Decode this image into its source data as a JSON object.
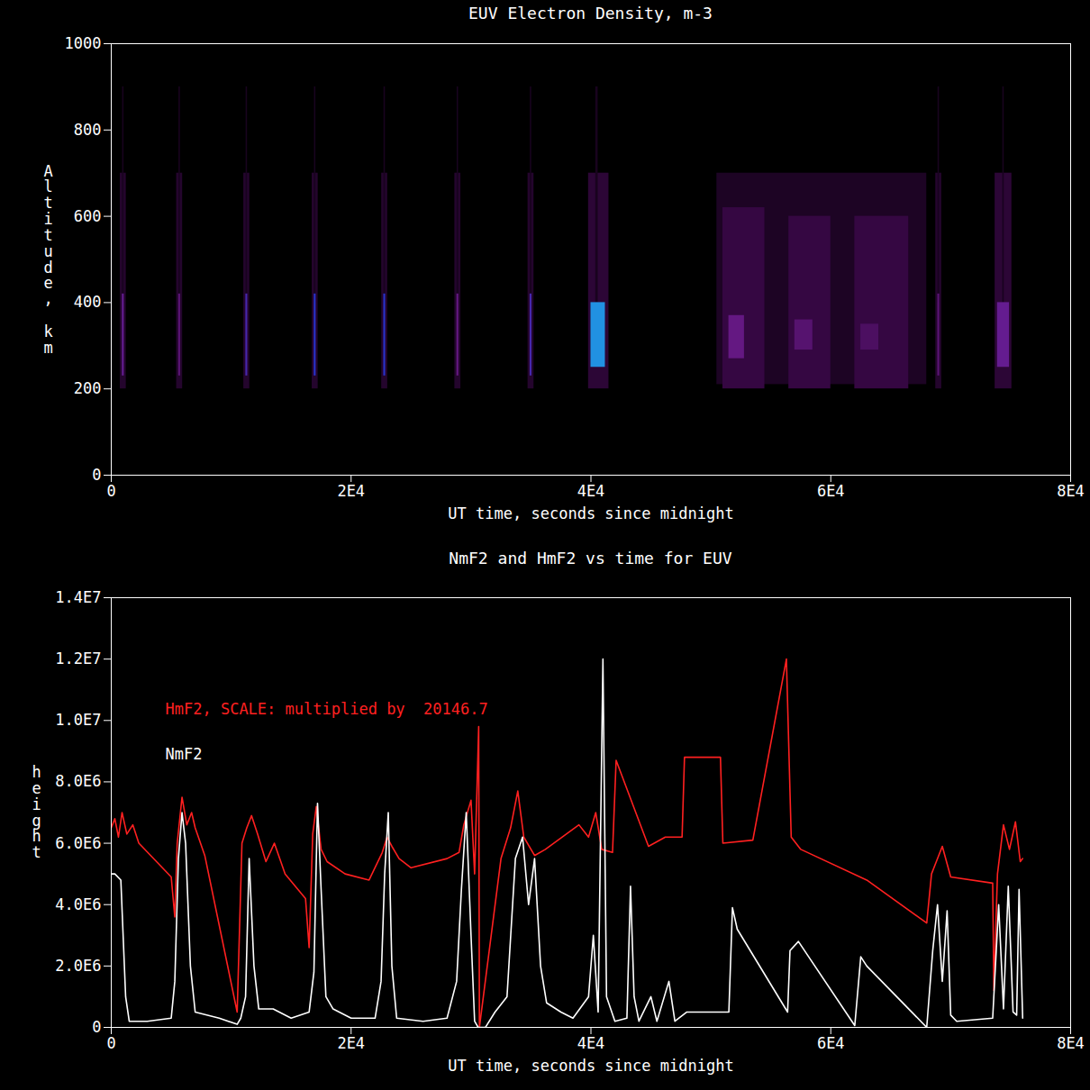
{
  "chart_data": [
    {
      "type": "heatmap",
      "title": "EUV Electron Density, m-3",
      "x_label": "UT time, seconds since midnight",
      "y_label": "Altitude, km",
      "xlim": [
        0,
        80000
      ],
      "xticks": [
        0,
        {
          "value": 20000,
          "label": "2E4"
        },
        {
          "value": 40000,
          "label": "4E4"
        },
        {
          "value": 60000,
          "label": "6E4"
        },
        {
          "value": 80000,
          "label": "8E4"
        }
      ],
      "ylim": [
        0,
        1000
      ],
      "yticks": [
        0,
        200,
        400,
        600,
        800,
        1000
      ],
      "zlim": [
        0,
        12000000
      ],
      "cells": [
        {
          "x0": 50500,
          "x1": 68000,
          "y0": 210,
          "y1": 700,
          "value": 1200000
        },
        {
          "x0": 51000,
          "x1": 54500,
          "y0": 200,
          "y1": 620,
          "value": 2200000
        },
        {
          "x0": 56500,
          "x1": 60000,
          "y0": 200,
          "y1": 600,
          "value": 2200000
        },
        {
          "x0": 62000,
          "x1": 66500,
          "y0": 200,
          "y1": 600,
          "value": 2200000
        },
        {
          "x0": 51500,
          "x1": 52800,
          "y0": 270,
          "y1": 370,
          "value": 4500000
        },
        {
          "x0": 57000,
          "x1": 58500,
          "y0": 290,
          "y1": 360,
          "value": 3800000
        },
        {
          "x0": 62500,
          "x1": 64000,
          "y0": 290,
          "y1": 350,
          "value": 3300000
        },
        {
          "x0": 750,
          "x1": 1250,
          "y0": 200,
          "y1": 700,
          "value": 1500000
        },
        {
          "x0": 940,
          "x1": 1060,
          "y0": 400,
          "y1": 900,
          "value": 1000000
        },
        {
          "x0": 920,
          "x1": 1080,
          "y0": 230,
          "y1": 420,
          "value": 5000000
        },
        {
          "x0": 5450,
          "x1": 5950,
          "y0": 200,
          "y1": 700,
          "value": 1500000
        },
        {
          "x0": 5640,
          "x1": 5760,
          "y0": 400,
          "y1": 900,
          "value": 1000000
        },
        {
          "x0": 5620,
          "x1": 5780,
          "y0": 230,
          "y1": 420,
          "value": 4000000
        },
        {
          "x0": 11050,
          "x1": 11550,
          "y0": 200,
          "y1": 700,
          "value": 1500000
        },
        {
          "x0": 11240,
          "x1": 11360,
          "y0": 400,
          "y1": 900,
          "value": 1000000
        },
        {
          "x0": 11220,
          "x1": 11380,
          "y0": 230,
          "y1": 420,
          "value": 6000000
        },
        {
          "x0": 16750,
          "x1": 17250,
          "y0": 200,
          "y1": 700,
          "value": 1500000
        },
        {
          "x0": 16940,
          "x1": 17060,
          "y0": 400,
          "y1": 900,
          "value": 1000000
        },
        {
          "x0": 16920,
          "x1": 17080,
          "y0": 230,
          "y1": 420,
          "value": 7000000
        },
        {
          "x0": 22550,
          "x1": 23050,
          "y0": 200,
          "y1": 700,
          "value": 1500000
        },
        {
          "x0": 22740,
          "x1": 22860,
          "y0": 400,
          "y1": 900,
          "value": 1000000
        },
        {
          "x0": 22720,
          "x1": 22880,
          "y0": 230,
          "y1": 420,
          "value": 7000000
        },
        {
          "x0": 28650,
          "x1": 29150,
          "y0": 200,
          "y1": 700,
          "value": 1500000
        },
        {
          "x0": 28840,
          "x1": 28960,
          "y0": 400,
          "y1": 900,
          "value": 1000000
        },
        {
          "x0": 28820,
          "x1": 28980,
          "y0": 230,
          "y1": 420,
          "value": 4500000
        },
        {
          "x0": 34750,
          "x1": 35250,
          "y0": 200,
          "y1": 700,
          "value": 1500000
        },
        {
          "x0": 34940,
          "x1": 35060,
          "y0": 400,
          "y1": 900,
          "value": 1000000
        },
        {
          "x0": 34920,
          "x1": 35080,
          "y0": 230,
          "y1": 420,
          "value": 6000000
        },
        {
          "x0": 39800,
          "x1": 41500,
          "y0": 200,
          "y1": 700,
          "value": 1800000
        },
        {
          "x0": 40400,
          "x1": 40600,
          "y0": 400,
          "y1": 900,
          "value": 1000000
        },
        {
          "x0": 40000,
          "x1": 41200,
          "y0": 250,
          "y1": 400,
          "value": 9000000
        },
        {
          "x0": 68750,
          "x1": 69250,
          "y0": 200,
          "y1": 700,
          "value": 1500000
        },
        {
          "x0": 68940,
          "x1": 69060,
          "y0": 400,
          "y1": 900,
          "value": 1000000
        },
        {
          "x0": 68920,
          "x1": 69080,
          "y0": 230,
          "y1": 420,
          "value": 4000000
        },
        {
          "x0": 73700,
          "x1": 75100,
          "y0": 200,
          "y1": 700,
          "value": 1800000
        },
        {
          "x0": 74340,
          "x1": 74460,
          "y0": 400,
          "y1": 900,
          "value": 1000000
        },
        {
          "x0": 73900,
          "x1": 74900,
          "y0": 250,
          "y1": 400,
          "value": 5000000
        }
      ]
    },
    {
      "type": "line",
      "title": "NmF2 and HmF2 vs time for EUV",
      "x_label": "UT time, seconds since midnight",
      "y_label": "height",
      "xlim": [
        0,
        80000
      ],
      "xticks": [
        0,
        {
          "value": 20000,
          "label": "2E4"
        },
        {
          "value": 40000,
          "label": "4E4"
        },
        {
          "value": 60000,
          "label": "6E4"
        },
        {
          "value": 80000,
          "label": "8E4"
        }
      ],
      "ylim": [
        0,
        14000000
      ],
      "yticks": [
        0,
        {
          "value": 2000000,
          "label": "2.0E6"
        },
        {
          "value": 4000000,
          "label": "4.0E6"
        },
        {
          "value": 6000000,
          "label": "6.0E6"
        },
        {
          "value": 8000000,
          "label": "8.0E6"
        },
        {
          "value": 10000000,
          "label": "1.0E7"
        },
        {
          "value": 12000000,
          "label": "1.2E7"
        },
        {
          "value": 14000000,
          "label": "1.4E7"
        }
      ],
      "legend": "upper left",
      "series": [
        {
          "name": "HmF2, SCALE: multiplied by  20146.7",
          "color": "#ff2020",
          "x": [
            0,
            300,
            600,
            900,
            1300,
            1800,
            2300,
            5000,
            5300,
            5500,
            5900,
            6300,
            6700,
            7000,
            7800,
            10500,
            10900,
            11300,
            11700,
            12200,
            12900,
            13600,
            14500,
            16200,
            16500,
            16800,
            17100,
            17500,
            18000,
            19500,
            21500,
            22600,
            23000,
            23400,
            24000,
            25000,
            28000,
            29000,
            29400,
            30000,
            30300,
            30640,
            30700,
            32500,
            33300,
            33900,
            34400,
            35300,
            36200,
            39000,
            39800,
            40400,
            40900,
            41800,
            42100,
            44800,
            46200,
            47600,
            47800,
            50800,
            51000,
            53500,
            56300,
            56700,
            57500,
            63000,
            68000,
            68400,
            68800,
            69300,
            70000,
            73500,
            73600,
            73900,
            74400,
            74900,
            75400,
            75800,
            76000
          ],
          "values": [
            6500000,
            6800000,
            6200000,
            7000000,
            6300000,
            6600000,
            6000000,
            4900000,
            3600000,
            6000000,
            7500000,
            6600000,
            7000000,
            6500000,
            5600000,
            500000,
            6000000,
            6500000,
            6900000,
            6300000,
            5400000,
            6000000,
            5000000,
            4200000,
            2600000,
            6300000,
            7200000,
            5800000,
            5400000,
            5000000,
            4800000,
            5700000,
            6200000,
            5900000,
            5500000,
            5200000,
            5500000,
            5700000,
            6600000,
            7400000,
            5000000,
            9800000,
            0,
            5500000,
            6500000,
            7700000,
            6200000,
            5600000,
            5800000,
            6600000,
            6200000,
            7000000,
            5800000,
            5700000,
            8700000,
            5900000,
            6200000,
            6200000,
            8800000,
            8800000,
            6000000,
            6100000,
            12000000,
            6200000,
            5800000,
            4800000,
            3400000,
            5000000,
            5400000,
            5900000,
            4900000,
            4700000,
            1200000,
            5000000,
            6600000,
            5800000,
            6700000,
            5400000,
            5500000
          ]
        },
        {
          "name": "NmF2",
          "color": "#ffffff",
          "x": [
            0,
            300,
            800,
            1200,
            1500,
            3000,
            5000,
            5300,
            5600,
            5900,
            6200,
            6600,
            7000,
            9000,
            10500,
            10800,
            11200,
            11500,
            11900,
            12300,
            13500,
            15000,
            16500,
            16900,
            17200,
            17500,
            17900,
            18500,
            20000,
            22000,
            22500,
            22800,
            23100,
            23400,
            23800,
            26000,
            28000,
            28800,
            29200,
            29600,
            30000,
            30300,
            30600,
            31200,
            32000,
            33000,
            33700,
            34300,
            34800,
            35300,
            35800,
            36300,
            37500,
            38500,
            39800,
            40200,
            40600,
            41000,
            41300,
            42000,
            43000,
            43300,
            43600,
            44000,
            45000,
            45500,
            46500,
            47000,
            48000,
            51500,
            51800,
            52200,
            56400,
            56600,
            57300,
            62000,
            62500,
            63000,
            68000,
            68500,
            68900,
            69300,
            69700,
            70000,
            70500,
            73500,
            74000,
            74400,
            74800,
            75200,
            75500,
            75700,
            76000
          ],
          "values": [
            5000000,
            5000000,
            4800000,
            1000000,
            200000,
            200000,
            300000,
            1500000,
            5500000,
            7000000,
            6000000,
            2000000,
            500000,
            300000,
            100000,
            300000,
            1000000,
            5500000,
            2000000,
            600000,
            600000,
            300000,
            500000,
            1800000,
            7300000,
            4500000,
            1000000,
            600000,
            300000,
            300000,
            1500000,
            5000000,
            7000000,
            2000000,
            300000,
            200000,
            300000,
            1500000,
            4500000,
            7000000,
            3000000,
            200000,
            0,
            0,
            500000,
            1000000,
            5500000,
            6200000,
            4000000,
            5500000,
            2000000,
            800000,
            500000,
            300000,
            1000000,
            3000000,
            500000,
            12000000,
            1000000,
            200000,
            300000,
            4600000,
            1000000,
            200000,
            1000000,
            200000,
            1500000,
            200000,
            500000,
            500000,
            3900000,
            3200000,
            500000,
            2500000,
            2800000,
            60000,
            2300000,
            2000000,
            0,
            2500000,
            4000000,
            1500000,
            3800000,
            400000,
            200000,
            300000,
            4000000,
            600000,
            4600000,
            500000,
            400000,
            4500000,
            300000
          ]
        }
      ]
    }
  ]
}
